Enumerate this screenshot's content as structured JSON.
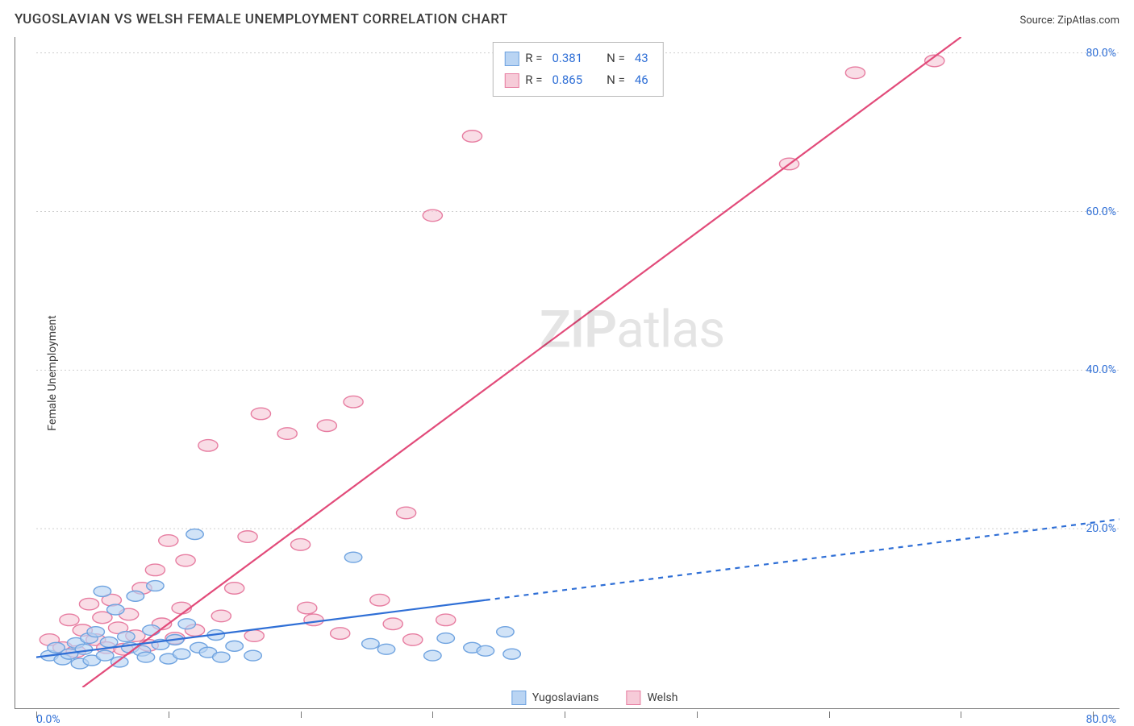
{
  "header": {
    "title": "YUGOSLAVIAN VS WELSH FEMALE UNEMPLOYMENT CORRELATION CHART",
    "source_label": "Source: ",
    "source_name": "ZipAtlas.com"
  },
  "y_axis": {
    "label": "Female Unemployment"
  },
  "watermark": {
    "zip": "ZIP",
    "atlas": "atlas"
  },
  "axis": {
    "xmin": 0,
    "xmax": 82,
    "ymin": 0,
    "ymax": 82,
    "ytick_labels": [
      "20.0%",
      "40.0%",
      "60.0%",
      "80.0%"
    ],
    "ytick_values": [
      20,
      40,
      60,
      80
    ],
    "x_start_label": "0.0%",
    "x_end_label": "80.0%",
    "xtick_values": [
      0,
      10,
      20,
      30,
      40,
      50,
      60,
      70,
      80
    ],
    "tick_label_color": "#2f6fd6",
    "grid_color": "#cfcfcf"
  },
  "series": {
    "yugoslavians": {
      "label": "Yugoslavians",
      "fill": "#b9d4f3",
      "stroke": "#6fa3e0",
      "line_color": "#2f6fd6",
      "marker_r": 8,
      "trend": {
        "x1": 0,
        "y1": 3.8,
        "x_solid_end": 34,
        "y_solid_end": 11.0,
        "x2": 82,
        "y2": 21.2,
        "dash": "6 6",
        "width": 2.2
      },
      "points": [
        [
          1,
          4
        ],
        [
          1.5,
          5
        ],
        [
          2,
          3.5
        ],
        [
          2.5,
          4.2
        ],
        [
          3,
          5.6
        ],
        [
          3.3,
          3
        ],
        [
          3.6,
          4.8
        ],
        [
          4,
          6.2
        ],
        [
          4.2,
          3.4
        ],
        [
          4.5,
          7
        ],
        [
          5,
          12.1
        ],
        [
          5.2,
          4
        ],
        [
          5.5,
          5.7
        ],
        [
          6,
          9.8
        ],
        [
          6.3,
          3.2
        ],
        [
          6.8,
          6.4
        ],
        [
          7.1,
          5.0
        ],
        [
          7.5,
          11.5
        ],
        [
          8,
          4.6
        ],
        [
          8.3,
          3.8
        ],
        [
          8.7,
          7.2
        ],
        [
          9,
          12.8
        ],
        [
          9.4,
          5.4
        ],
        [
          10,
          3.6
        ],
        [
          10.5,
          6.0
        ],
        [
          11,
          4.2
        ],
        [
          11.4,
          8.0
        ],
        [
          12,
          19.3
        ],
        [
          12.3,
          5.0
        ],
        [
          13,
          4.4
        ],
        [
          13.6,
          6.6
        ],
        [
          14,
          3.8
        ],
        [
          15,
          5.2
        ],
        [
          16.4,
          4.0
        ],
        [
          24,
          16.4
        ],
        [
          25.3,
          5.5
        ],
        [
          26.5,
          4.8
        ],
        [
          30,
          4.0
        ],
        [
          31,
          6.2
        ],
        [
          33,
          5.0
        ],
        [
          34,
          4.6
        ],
        [
          35.5,
          7.0
        ],
        [
          36,
          4.2
        ]
      ]
    },
    "welsh": {
      "label": "Welsh",
      "fill": "#f6cbd8",
      "stroke": "#e77da1",
      "line_color": "#e24b7a",
      "marker_r": 9,
      "trend": {
        "x1": 3.5,
        "y1": 0,
        "x2": 70,
        "y2": 82,
        "width": 2.2
      },
      "points": [
        [
          1,
          6
        ],
        [
          2,
          5
        ],
        [
          2.5,
          8.5
        ],
        [
          3,
          4.5
        ],
        [
          3.5,
          7.2
        ],
        [
          4,
          10.5
        ],
        [
          4.5,
          6.0
        ],
        [
          5,
          8.8
        ],
        [
          5.3,
          5.0
        ],
        [
          5.7,
          11.0
        ],
        [
          6.2,
          7.5
        ],
        [
          6.6,
          4.8
        ],
        [
          7,
          9.2
        ],
        [
          7.5,
          6.5
        ],
        [
          8,
          12.5
        ],
        [
          8.5,
          5.3
        ],
        [
          9,
          14.8
        ],
        [
          9.5,
          8.0
        ],
        [
          10,
          18.5
        ],
        [
          10.5,
          6.2
        ],
        [
          11,
          10.0
        ],
        [
          11.3,
          16.0
        ],
        [
          12,
          7.2
        ],
        [
          13,
          30.5
        ],
        [
          14,
          9.0
        ],
        [
          15,
          12.5
        ],
        [
          16,
          19.0
        ],
        [
          16.5,
          6.5
        ],
        [
          17,
          34.5
        ],
        [
          19,
          32.0
        ],
        [
          20,
          18.0
        ],
        [
          20.5,
          10.0
        ],
        [
          21,
          8.5
        ],
        [
          22,
          33.0
        ],
        [
          23,
          6.8
        ],
        [
          24,
          36.0
        ],
        [
          26,
          11.0
        ],
        [
          27,
          8.0
        ],
        [
          28,
          22.0
        ],
        [
          28.5,
          6.0
        ],
        [
          30,
          59.5
        ],
        [
          31,
          8.5
        ],
        [
          33,
          69.5
        ],
        [
          57,
          66.0
        ],
        [
          62,
          77.5
        ],
        [
          68,
          79.0
        ]
      ]
    }
  },
  "stats": {
    "r_label": "R  =",
    "n_label": "N  =",
    "rows": [
      {
        "series": "yugoslavians",
        "R": "0.381",
        "N": "43"
      },
      {
        "series": "welsh",
        "R": "0.865",
        "N": "46"
      }
    ]
  },
  "legend_bottom": {
    "items": [
      {
        "series": "yugoslavians"
      },
      {
        "series": "welsh"
      }
    ]
  }
}
